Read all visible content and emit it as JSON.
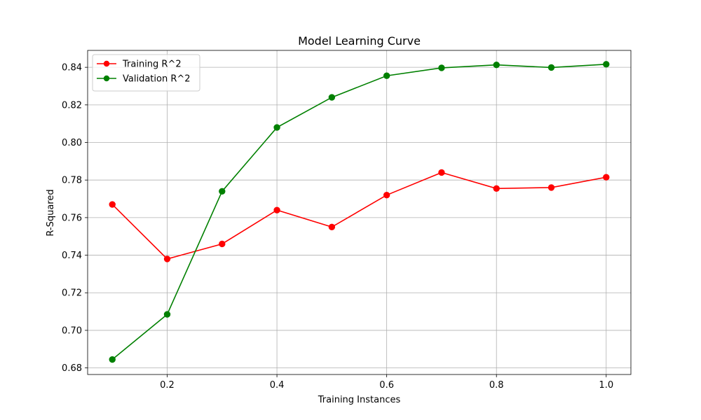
{
  "chart_data": {
    "type": "line",
    "title": "Model Learning Curve",
    "xlabel": "Training Instances",
    "ylabel": "R-Squared",
    "xlim": [
      0.055,
      1.045
    ],
    "ylim": [
      0.6765,
      0.849
    ],
    "x_ticks": [
      0.2,
      0.4,
      0.6,
      0.8,
      1.0
    ],
    "x_tick_labels": [
      "0.2",
      "0.4",
      "0.6",
      "0.8",
      "1.0"
    ],
    "y_ticks": [
      0.68,
      0.7,
      0.72,
      0.74,
      0.76,
      0.78,
      0.8,
      0.82,
      0.84
    ],
    "y_tick_labels": [
      "0.68",
      "0.70",
      "0.72",
      "0.74",
      "0.76",
      "0.78",
      "0.80",
      "0.82",
      "0.84"
    ],
    "grid": true,
    "legend_position": "top-left",
    "x": [
      0.1,
      0.2,
      0.3,
      0.4,
      0.5,
      0.6,
      0.7,
      0.8,
      0.9,
      1.0
    ],
    "series": [
      {
        "name": "Training R^2",
        "color": "#ff0000",
        "values": [
          0.767,
          0.738,
          0.746,
          0.764,
          0.755,
          0.772,
          0.784,
          0.7755,
          0.776,
          0.7815
        ]
      },
      {
        "name": "Validation R^2",
        "color": "#008000",
        "values": [
          0.6845,
          0.7085,
          0.774,
          0.808,
          0.824,
          0.8355,
          0.8397,
          0.8413,
          0.8399,
          0.8416
        ]
      }
    ]
  }
}
